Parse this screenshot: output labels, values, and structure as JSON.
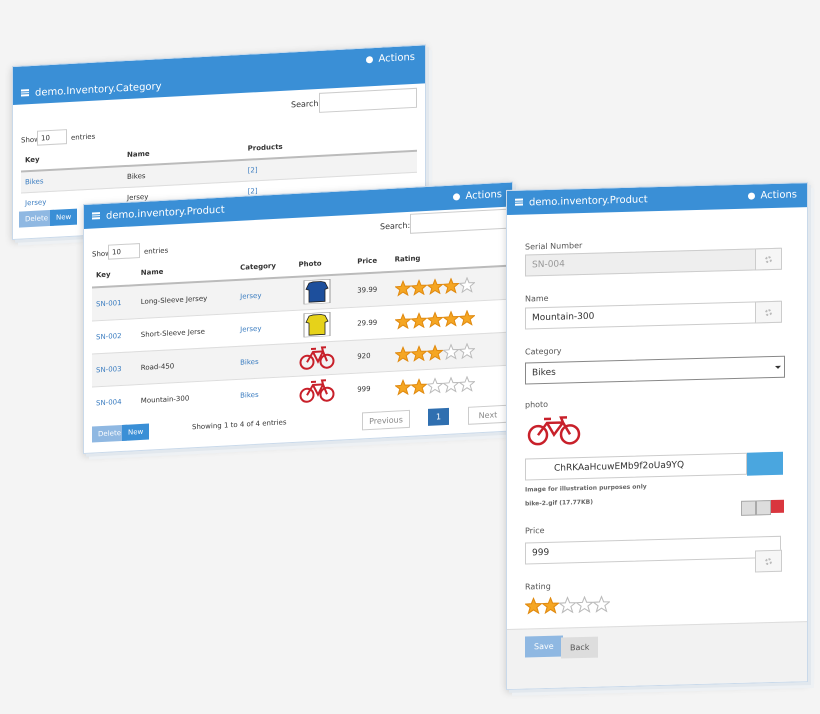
{
  "category_panel": {
    "actions": "Actions",
    "title": "demo.Inventory.Category",
    "search_label": "Search:",
    "show": "Show",
    "page_size": "10",
    "entries": "entries",
    "columns": [
      "Key",
      "Name",
      "Products"
    ],
    "rows": [
      [
        "Bikes",
        "Bikes",
        "[2]"
      ],
      [
        "Jersey",
        "Jersey",
        "[2]"
      ]
    ],
    "buttons": [
      "Delete",
      "New"
    ]
  },
  "product_panel": {
    "title": "demo.inventory.Product",
    "actions": "Actions",
    "search_label": "Search:",
    "show": "Show",
    "page_size": "10",
    "entries": "entries",
    "columns": [
      "Key",
      "Name",
      "Category",
      "Photo",
      "Price",
      "Rating"
    ],
    "rows": [
      {
        "key": "SN-001",
        "name": "Long-Sleeve Jersey",
        "category": "Jersey",
        "price": "39.99",
        "rating": 4
      },
      {
        "key": "SN-002",
        "name": "Short-Sleeve Jerse",
        "category": "Jersey",
        "price": "29.99",
        "rating": 5
      },
      {
        "key": "SN-003",
        "name": "Road-450",
        "category": "Bikes",
        "price": "920",
        "rating": 3
      },
      {
        "key": "SN-004",
        "name": "Mountain-300",
        "category": "Bikes",
        "price": "999",
        "rating": 2
      }
    ],
    "buttons": [
      "Delete",
      "New"
    ],
    "info": "Showing 1 to 4 of 4 entries",
    "pagination": [
      "Previous",
      "1",
      "Next"
    ]
  },
  "form_panel": {
    "title": "demo.inventory.Product",
    "actions": "Actions",
    "serial_label": "Serial Number",
    "serial_value": "SN-004",
    "name_label": "Name",
    "name_value": "Mountain-300",
    "category_label": "Category",
    "category_value": "Bikes",
    "photo_label": "photo",
    "file_id": "ChRKAaHcuwEMb9f2oUa9YQ",
    "photo_note": "Image for illustration purposes only",
    "file_name": "bike-2.gif (17.77KB)",
    "price_label": "Price",
    "price_value": "999",
    "rating_label": "Rating",
    "rating": 2,
    "buttons": [
      "Save",
      "Back"
    ]
  }
}
